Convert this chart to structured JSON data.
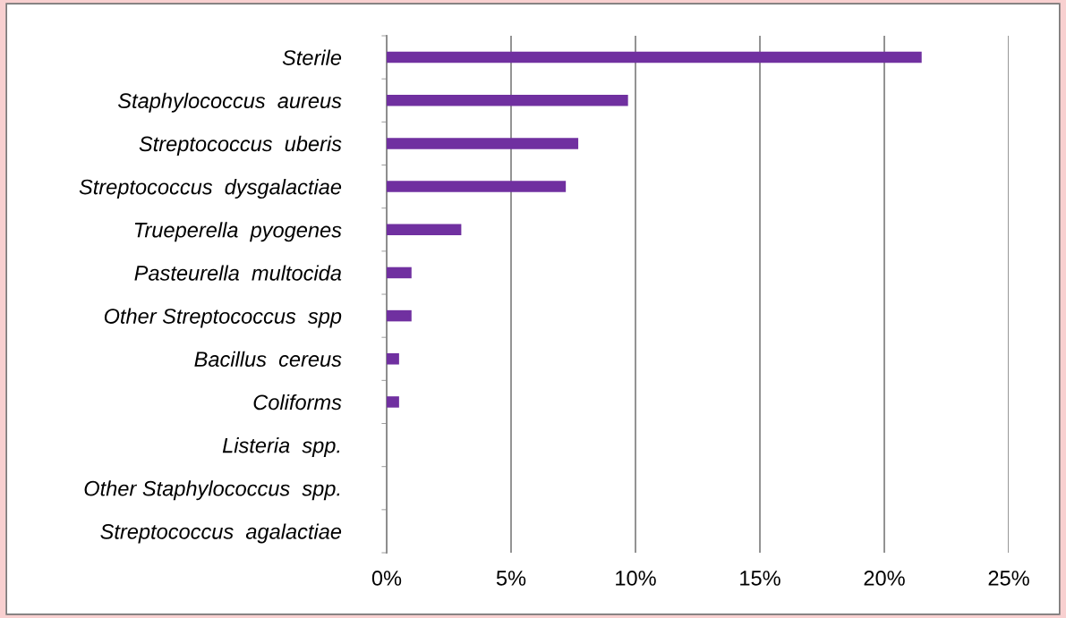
{
  "chart_data": {
    "type": "bar",
    "orientation": "horizontal",
    "categories": [
      "Sterile",
      "Staphylococcus  aureus",
      "Streptococcus  uberis",
      "Streptococcus  dysgalactiae",
      "Trueperella  pyogenes",
      "Pasteurella  multocida",
      "Other Streptococcus  spp",
      "Bacillus  cereus",
      "Coliforms",
      "Listeria  spp.",
      "Other Staphylococcus  spp.",
      "Streptococcus  agalactiae"
    ],
    "values": [
      21.5,
      9.7,
      7.7,
      7.2,
      3.0,
      1.0,
      1.0,
      0.5,
      0.5,
      0,
      0,
      0
    ],
    "color": "#7030a0",
    "xlim": [
      0,
      25
    ],
    "xticks": [
      {
        "value": 0,
        "label": "0%"
      },
      {
        "value": 5,
        "label": "5%"
      },
      {
        "value": 10,
        "label": "10%"
      },
      {
        "value": 15,
        "label": "15%"
      },
      {
        "value": 20,
        "label": "20%"
      },
      {
        "value": 25,
        "label": "25%"
      }
    ],
    "grid": "x",
    "legend": false
  }
}
